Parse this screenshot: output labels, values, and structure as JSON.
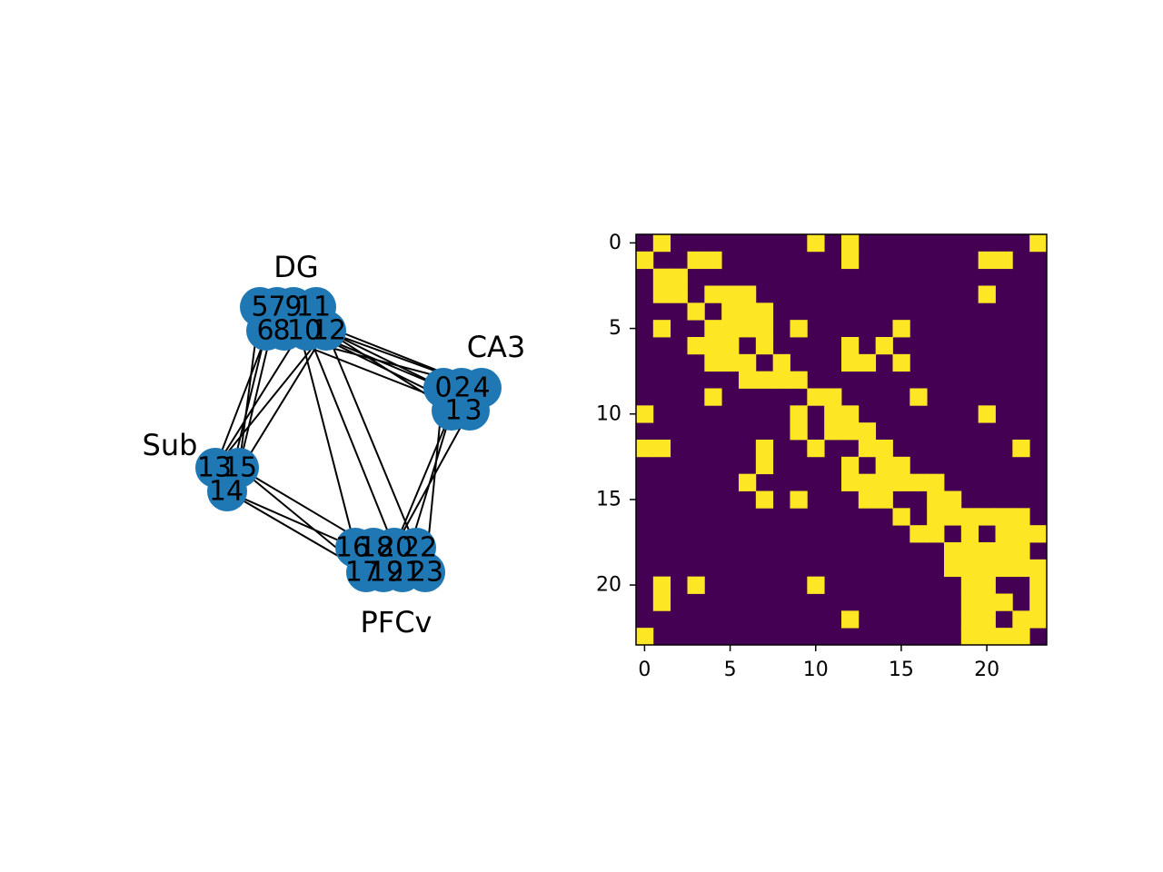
{
  "chart_data": [
    {
      "type": "network",
      "groups": [
        {
          "name": "DG",
          "nodes": [
            5,
            7,
            9,
            11,
            6,
            8,
            10,
            12
          ]
        },
        {
          "name": "CA3",
          "nodes": [
            0,
            2,
            4,
            1,
            3
          ]
        },
        {
          "name": "Sub",
          "nodes": [
            13,
            15,
            14
          ]
        },
        {
          "name": "PFCv",
          "nodes": [
            16,
            18,
            20,
            22,
            17,
            19,
            21,
            23
          ]
        }
      ],
      "node_labels": [
        "5",
        "7",
        "9",
        "11",
        "6",
        "8",
        "10",
        "12",
        "0",
        "2",
        "4",
        "1",
        "3",
        "13",
        "15",
        "14",
        "16",
        "18",
        "20",
        "22",
        "17",
        "19",
        "21",
        "23"
      ],
      "node_color": "#1f77b4",
      "edge_color": "#000000"
    },
    {
      "type": "heatmap",
      "size": 24,
      "values_on": [
        1,
        0
      ],
      "colors": {
        "on": "#fde725",
        "off": "#440154"
      },
      "xticks": [
        0,
        5,
        10,
        15,
        20
      ],
      "yticks": [
        0,
        5,
        10,
        15,
        20
      ],
      "xlim": [
        -0.5,
        23.5
      ],
      "ylim": [
        23.5,
        -0.5
      ],
      "matrix": [
        "010000000010100000000001",
        "100110000000100000001100",
        "011000000000000000000000",
        "011011100000000000001000",
        "000101110000000000000000",
        "010011110100000100000000",
        "000111010000101000000000",
        "000011101000110100000000",
        "000000111100000000000000",
        "000010000011000010000000",
        "100000000101100000001000",
        "000000000101110000000000",
        "110000010010011000000010",
        "000000010000101100000000",
        "000000100000111111000000",
        "000000010100011001100000",
        "000000000000000101111110",
        "000000000000000011010111",
        "000000000000000000111110",
        "000000000000000000111111",
        "010100000010000000011001",
        "010000000000000000011101",
        "000000000000100000011011",
        "100000000000000000011110"
      ]
    }
  ]
}
